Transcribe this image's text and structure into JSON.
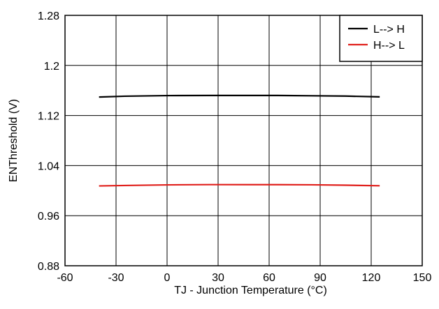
{
  "chart_data": {
    "type": "line",
    "title": "",
    "xlabel": "TJ - Junction Temperature (°C)",
    "ylabel": "ENThreshold (V)",
    "xlim": [
      -60,
      150
    ],
    "ylim": [
      0.88,
      1.28
    ],
    "x_ticks": [
      -60,
      -30,
      0,
      30,
      60,
      90,
      120,
      150
    ],
    "y_ticks": [
      0.88,
      0.96,
      1.04,
      1.12,
      1.2,
      1.28
    ],
    "x_tick_labels": [
      "-60",
      "-30",
      "0",
      "30",
      "60",
      "90",
      "120",
      "150"
    ],
    "y_tick_labels": [
      "0.88",
      "0.96",
      "1.04",
      "1.12",
      "1.2",
      "1.28"
    ],
    "grid": true,
    "legend_position": "top-right",
    "series": [
      {
        "name": "L--> H",
        "color": "#000000",
        "x": [
          -40,
          -25,
          0,
          25,
          50,
          65,
          85,
          105,
          125
        ],
        "y": [
          1.1495,
          1.1508,
          1.1518,
          1.152,
          1.152,
          1.152,
          1.1515,
          1.151,
          1.1498
        ]
      },
      {
        "name": "H--> L",
        "color": "#e0201c",
        "x": [
          -40,
          -25,
          0,
          25,
          50,
          65,
          85,
          105,
          125
        ],
        "y": [
          1.0075,
          1.0082,
          1.0092,
          1.0096,
          1.0095,
          1.0095,
          1.0093,
          1.0087,
          1.0078
        ]
      }
    ]
  }
}
